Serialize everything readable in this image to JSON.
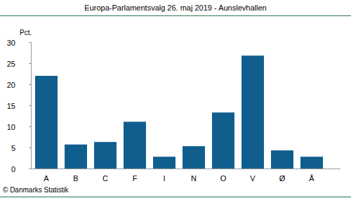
{
  "chart_data": {
    "type": "bar",
    "title": "Europa-Parlamentsvalg 26. maj 2019 - Aunslevhallen",
    "y_label": "Pct.",
    "source": "© Danmarks Statistik",
    "categories": [
      "A",
      "B",
      "C",
      "F",
      "I",
      "N",
      "O",
      "V",
      "Ø",
      "Å"
    ],
    "values": [
      22.0,
      5.7,
      6.3,
      11.1,
      2.8,
      5.3,
      13.3,
      26.8,
      4.3,
      2.8
    ],
    "color": "#0f5e8e",
    "ylim": [
      0,
      30
    ],
    "yticks": [
      0,
      5,
      10,
      15,
      20,
      25,
      30
    ],
    "grid": false
  }
}
